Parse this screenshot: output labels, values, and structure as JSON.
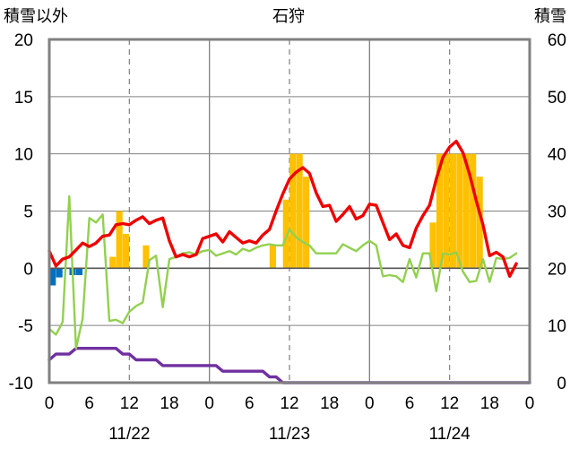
{
  "chart_data": {
    "type": "line",
    "title": "石狩",
    "ylabel_left": "積雪以外",
    "ylabel_right": "積雪",
    "y_left_range": [
      -10,
      20
    ],
    "y_left_ticks": [
      "20",
      "15",
      "10",
      "5",
      "0",
      "-5",
      "-10"
    ],
    "y_right_range": [
      0,
      60
    ],
    "y_right_ticks": [
      "60",
      "50",
      "40",
      "30",
      "20",
      "10",
      "0"
    ],
    "x_tick_labels": [
      "0",
      "6",
      "12",
      "18",
      "0",
      "6",
      "12",
      "18",
      "0",
      "6",
      "12",
      "18",
      "0"
    ],
    "date_labels": [
      "11/22",
      "11/23",
      "11/24"
    ],
    "hours": 72,
    "colors": {
      "temperature": "#ee0000",
      "wind": "#92d050",
      "precipitation": "#ffc000",
      "negative_bar": "#0070c0",
      "snow_depth": "#7030a0",
      "frame": "#808080"
    },
    "series": [
      {
        "key": "temperature",
        "axis": "left",
        "values": [
          1.5,
          0.2,
          0.8,
          1.0,
          1.6,
          2.2,
          1.9,
          2.2,
          2.8,
          2.9,
          3.8,
          3.9,
          3.8,
          4.2,
          4.5,
          3.9,
          4.2,
          4.4,
          2.4,
          1.0,
          1.2,
          1.0,
          1.2,
          2.6,
          2.8,
          3.0,
          2.3,
          3.2,
          2.7,
          2.2,
          2.4,
          2.2,
          2.9,
          3.4,
          5.0,
          6.5,
          7.8,
          8.4,
          8.8,
          8.3,
          6.6,
          5.4,
          5.5,
          4.1,
          4.7,
          5.4,
          4.3,
          4.6,
          5.6,
          5.5,
          4.0,
          2.5,
          3.0,
          2.0,
          1.8,
          3.5,
          4.6,
          5.5,
          7.8,
          9.7,
          10.6,
          11.1,
          10.1,
          8.2,
          5.9,
          3.8,
          1.1,
          1.4,
          1.0,
          -0.7,
          0.4
        ]
      },
      {
        "key": "wind",
        "axis": "left",
        "values": [
          -5.3,
          -5.8,
          -4.7,
          6.3,
          -7.0,
          -4.4,
          4.4,
          4.0,
          4.7,
          -4.6,
          -4.5,
          -4.8,
          -3.8,
          -3.3,
          -3.0,
          0.7,
          1.1,
          -3.4,
          0.8,
          1.0,
          1.3,
          1.4,
          1.2,
          1.5,
          1.6,
          1.1,
          1.3,
          1.5,
          1.2,
          1.7,
          1.5,
          1.8,
          2.0,
          2.1,
          2.0,
          2.0,
          3.4,
          2.7,
          2.3,
          2.0,
          1.3,
          1.3,
          1.3,
          1.3,
          2.1,
          1.8,
          1.5,
          2.0,
          2.4,
          2.0,
          -0.7,
          -0.6,
          -0.7,
          -1.2,
          0.8,
          -0.8,
          1.3,
          1.3,
          -2.0,
          1.3,
          1.2,
          1.4,
          -0.3,
          -1.2,
          -1.1,
          0.8,
          -1.2,
          0.9,
          0.8,
          0.9,
          1.3
        ]
      },
      {
        "key": "snow_depth",
        "axis": "right",
        "values": [
          4,
          5,
          5,
          5,
          6,
          6,
          6,
          6,
          6,
          6,
          6,
          5,
          5,
          4,
          4,
          4,
          4,
          3,
          3,
          3,
          3,
          3,
          3,
          3,
          3,
          3,
          2,
          2,
          2,
          2,
          2,
          2,
          2,
          1,
          1,
          0,
          0,
          0,
          0,
          0,
          0,
          0,
          0,
          0,
          0,
          0,
          0,
          0,
          0,
          0,
          0,
          0,
          0,
          0,
          0,
          0,
          0,
          0,
          0,
          0,
          0,
          0,
          0,
          0,
          0,
          0,
          0,
          0,
          0,
          0,
          0,
          0,
          0
        ]
      }
    ],
    "bars": [
      {
        "hour": 0,
        "value": -1.5,
        "key": "negative_bar"
      },
      {
        "hour": 1,
        "value": -0.8,
        "key": "negative_bar"
      },
      {
        "hour": 3,
        "value": -0.6,
        "key": "negative_bar"
      },
      {
        "hour": 4,
        "value": -0.6,
        "key": "negative_bar"
      },
      {
        "hour": 9,
        "value": 1.0,
        "key": "precipitation"
      },
      {
        "hour": 10,
        "value": 5.0,
        "key": "precipitation"
      },
      {
        "hour": 11,
        "value": 3.0,
        "key": "precipitation"
      },
      {
        "hour": 14,
        "value": 2.0,
        "key": "precipitation"
      },
      {
        "hour": 33,
        "value": 2.0,
        "key": "precipitation"
      },
      {
        "hour": 35,
        "value": 6.0,
        "key": "precipitation"
      },
      {
        "hour": 36,
        "value": 10.0,
        "key": "precipitation"
      },
      {
        "hour": 37,
        "value": 10.0,
        "key": "precipitation"
      },
      {
        "hour": 38,
        "value": 8.0,
        "key": "precipitation"
      },
      {
        "hour": 57,
        "value": 4.0,
        "key": "precipitation"
      },
      {
        "hour": 58,
        "value": 10.0,
        "key": "precipitation"
      },
      {
        "hour": 59,
        "value": 10.0,
        "key": "precipitation"
      },
      {
        "hour": 60,
        "value": 10.0,
        "key": "precipitation"
      },
      {
        "hour": 61,
        "value": 10.0,
        "key": "precipitation"
      },
      {
        "hour": 62,
        "value": 10.0,
        "key": "precipitation"
      },
      {
        "hour": 63,
        "value": 10.0,
        "key": "precipitation"
      },
      {
        "hour": 64,
        "value": 8.0,
        "key": "precipitation"
      }
    ],
    "grid": true
  }
}
